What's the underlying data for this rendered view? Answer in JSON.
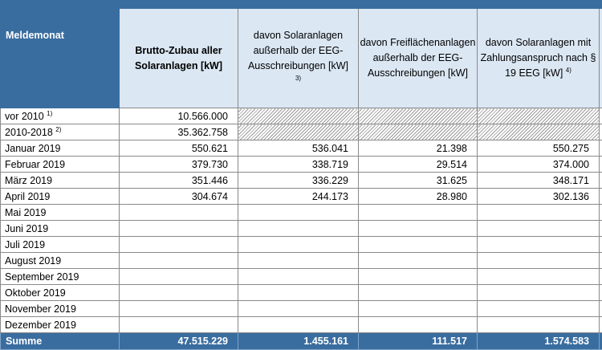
{
  "headers": {
    "month": "Meldemonat",
    "col1": "Brutto-Zubau aller Solaranlagen [kW]",
    "col2": "davon Solaranlagen außerhalb der EEG-Ausschreibungen [kW]",
    "col2_sup": "3)",
    "col3": "davon Freiflächenanlagen außerhalb der EEG-Ausschreibungen [kW]",
    "col4": "davon Solaranlagen mit Zahlungsanspruch nach § 19 EEG [kW]",
    "col4_sup": "4)"
  },
  "rows": [
    {
      "month": "vor 2010",
      "sup": "1)",
      "c1": "10.566.000",
      "c2": "",
      "c3": "",
      "c4": "",
      "hatched": true
    },
    {
      "month": "2010-2018",
      "sup": "2)",
      "c1": "35.362.758",
      "c2": "",
      "c3": "",
      "c4": "",
      "hatched": true
    },
    {
      "month": "Januar 2019",
      "sup": "",
      "c1": "550.621",
      "c2": "536.041",
      "c3": "21.398",
      "c4": "550.275",
      "hatched": false
    },
    {
      "month": "Februar 2019",
      "sup": "",
      "c1": "379.730",
      "c2": "338.719",
      "c3": "29.514",
      "c4": "374.000",
      "hatched": false
    },
    {
      "month": "März 2019",
      "sup": "",
      "c1": "351.446",
      "c2": "336.229",
      "c3": "31.625",
      "c4": "348.171",
      "hatched": false
    },
    {
      "month": "April 2019",
      "sup": "",
      "c1": "304.674",
      "c2": "244.173",
      "c3": "28.980",
      "c4": "302.136",
      "hatched": false
    },
    {
      "month": "Mai 2019",
      "sup": "",
      "c1": "",
      "c2": "",
      "c3": "",
      "c4": "",
      "hatched": false
    },
    {
      "month": "Juni 2019",
      "sup": "",
      "c1": "",
      "c2": "",
      "c3": "",
      "c4": "",
      "hatched": false
    },
    {
      "month": "Juli 2019",
      "sup": "",
      "c1": "",
      "c2": "",
      "c3": "",
      "c4": "",
      "hatched": false
    },
    {
      "month": "August 2019",
      "sup": "",
      "c1": "",
      "c2": "",
      "c3": "",
      "c4": "",
      "hatched": false
    },
    {
      "month": "September 2019",
      "sup": "",
      "c1": "",
      "c2": "",
      "c3": "",
      "c4": "",
      "hatched": false
    },
    {
      "month": "Oktober 2019",
      "sup": "",
      "c1": "",
      "c2": "",
      "c3": "",
      "c4": "",
      "hatched": false
    },
    {
      "month": "November 2019",
      "sup": "",
      "c1": "",
      "c2": "",
      "c3": "",
      "c4": "",
      "hatched": false
    },
    {
      "month": "Dezember 2019",
      "sup": "",
      "c1": "",
      "c2": "",
      "c3": "",
      "c4": "",
      "hatched": false
    }
  ],
  "summary": {
    "label": "Summe",
    "c1": "47.515.229",
    "c2": "1.455.161",
    "c3": "111.517",
    "c4": "1.574.583"
  },
  "colors": {
    "header_blue": "#3a6d9f",
    "header_light": "#dbe7f3"
  }
}
